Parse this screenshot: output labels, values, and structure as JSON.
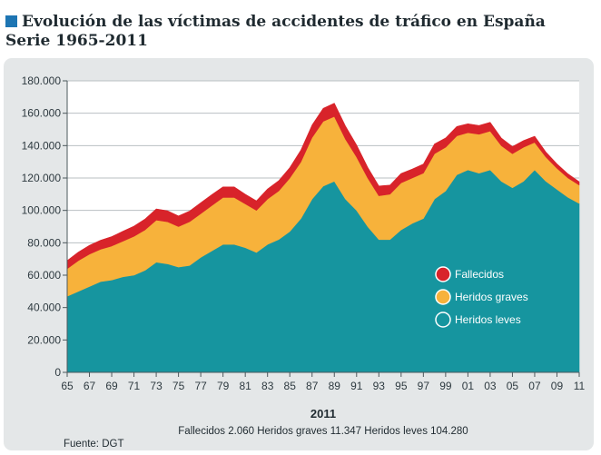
{
  "title": {
    "line1": "Evolución de las víctimas de accidentes de tráfico en España",
    "line2": "Serie 1965-2011"
  },
  "chart_data": {
    "type": "area",
    "stacked": true,
    "x": [
      1965,
      1966,
      1967,
      1968,
      1969,
      1970,
      1971,
      1972,
      1973,
      1974,
      1975,
      1976,
      1977,
      1978,
      1979,
      1980,
      1981,
      1982,
      1983,
      1984,
      1985,
      1986,
      1987,
      1988,
      1989,
      1990,
      1991,
      1992,
      1993,
      1994,
      1995,
      1996,
      1997,
      1998,
      1999,
      2000,
      2001,
      2002,
      2003,
      2004,
      2005,
      2006,
      2007,
      2008,
      2009,
      2010,
      2011
    ],
    "x_tick_labels": [
      "65",
      "67",
      "69",
      "71",
      "73",
      "75",
      "77",
      "79",
      "81",
      "83",
      "85",
      "87",
      "89",
      "91",
      "93",
      "95",
      "97",
      "99",
      "01",
      "03",
      "05",
      "07",
      "09",
      "11"
    ],
    "y_tick_labels": [
      "0",
      "20.000",
      "40.000",
      "60.000",
      "80.000",
      "100.000",
      "120.000",
      "140.000",
      "160.000",
      "180.000"
    ],
    "ylim": [
      0,
      180000
    ],
    "grid": true,
    "legend_position": "right",
    "series": [
      {
        "name": "Heridos leves",
        "color": "#16959f",
        "values": [
          47000,
          50000,
          53000,
          56000,
          57000,
          59000,
          60000,
          63000,
          68000,
          67000,
          65000,
          66000,
          71000,
          75000,
          79000,
          79000,
          77000,
          74000,
          79000,
          82000,
          87000,
          95000,
          107000,
          115000,
          118000,
          107000,
          100000,
          90000,
          82000,
          82000,
          88000,
          92000,
          95000,
          107000,
          112000,
          122000,
          125000,
          123000,
          125000,
          118000,
          114000,
          118000,
          125000,
          118000,
          113000,
          108000,
          104280
        ]
      },
      {
        "name": "Heridos graves",
        "color": "#f7b23b",
        "values": [
          17000,
          19000,
          20000,
          20000,
          21000,
          22000,
          24000,
          25000,
          26000,
          26000,
          25000,
          27000,
          27000,
          28000,
          29000,
          29000,
          27000,
          26000,
          28000,
          30000,
          33000,
          35000,
          38000,
          40000,
          40000,
          37000,
          33000,
          30000,
          27000,
          28000,
          29000,
          28000,
          28000,
          28000,
          27000,
          24000,
          23000,
          24000,
          24000,
          22000,
          21000,
          21000,
          17000,
          15000,
          13000,
          12000,
          11347
        ]
      },
      {
        "name": "Fallecidos",
        "color": "#d8232a",
        "values": [
          5000,
          5200,
          5400,
          5600,
          5800,
          6100,
          6300,
          6700,
          6900,
          6800,
          6600,
          6600,
          6700,
          6800,
          6500,
          6500,
          6000,
          5900,
          6200,
          6300,
          6400,
          7300,
          7700,
          8000,
          8200,
          8100,
          7400,
          6600,
          6100,
          5600,
          5800,
          5500,
          5600,
          6000,
          5700,
          5800,
          5500,
          5400,
          5400,
          4700,
          4400,
          4100,
          3800,
          3100,
          2700,
          2500,
          2060
        ]
      }
    ],
    "highlight_year": "2011",
    "annotation": "Fallecidos 2.060   Heridos graves 11.347   Heridos leves 104.280",
    "source": "Fuente: DGT"
  }
}
